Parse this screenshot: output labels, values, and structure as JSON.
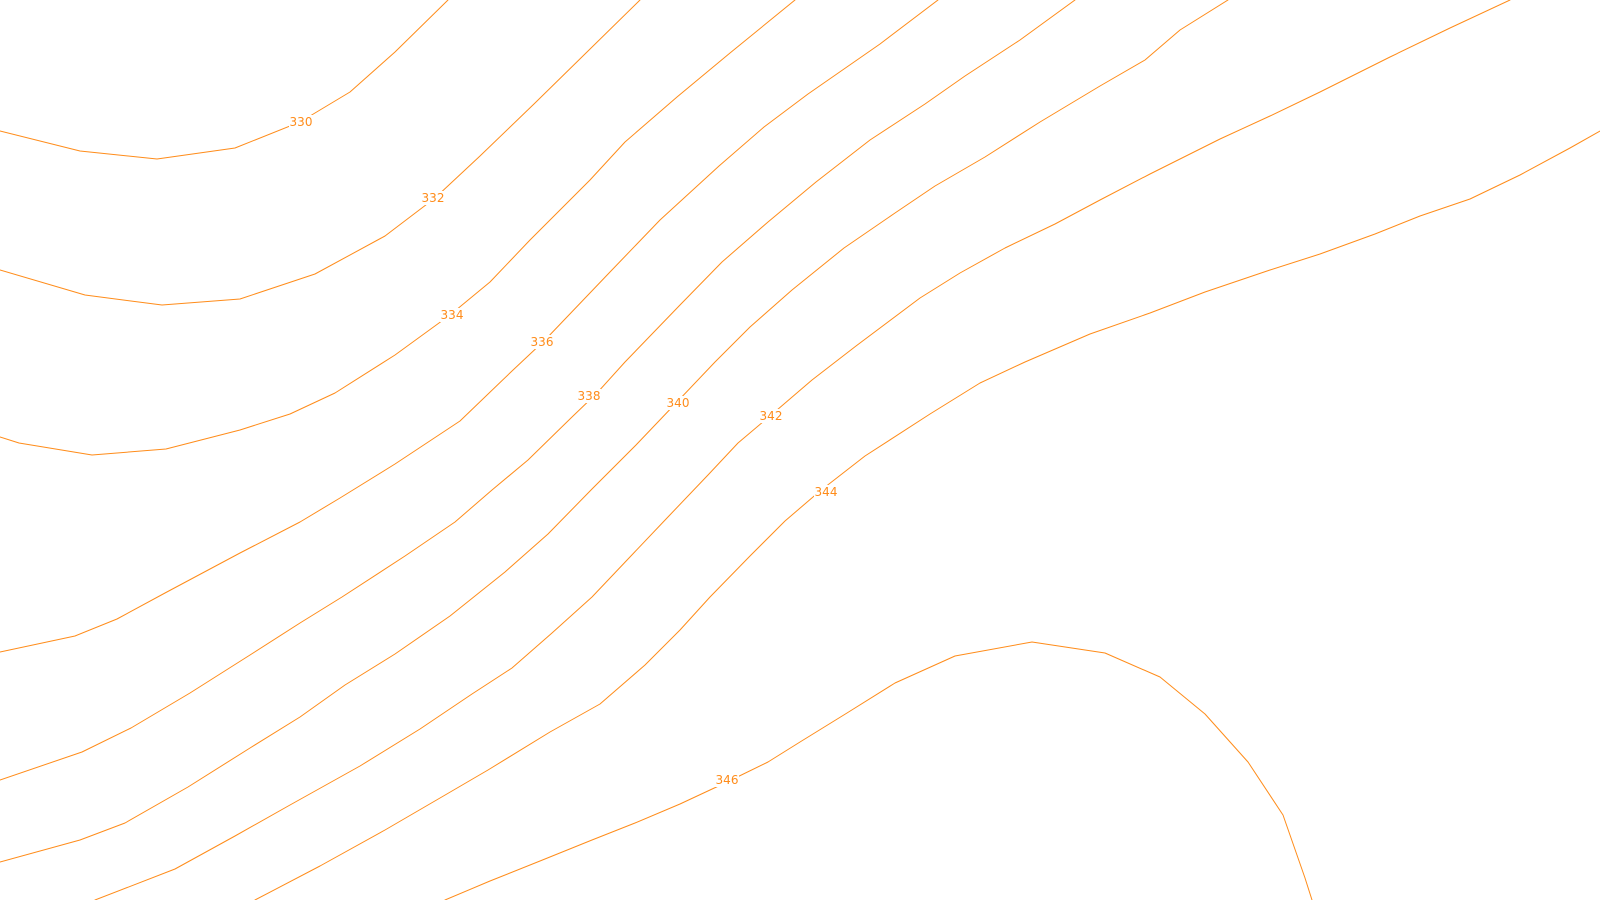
{
  "map": {
    "type": "contour",
    "line_color": "#ff8c1a",
    "background_color": "#ffffff",
    "contours": [
      {
        "elevation": "330"
      },
      {
        "elevation": "332"
      },
      {
        "elevation": "334"
      },
      {
        "elevation": "336"
      },
      {
        "elevation": "338"
      },
      {
        "elevation": "340"
      },
      {
        "elevation": "342"
      },
      {
        "elevation": "344"
      },
      {
        "elevation": "346"
      }
    ]
  }
}
